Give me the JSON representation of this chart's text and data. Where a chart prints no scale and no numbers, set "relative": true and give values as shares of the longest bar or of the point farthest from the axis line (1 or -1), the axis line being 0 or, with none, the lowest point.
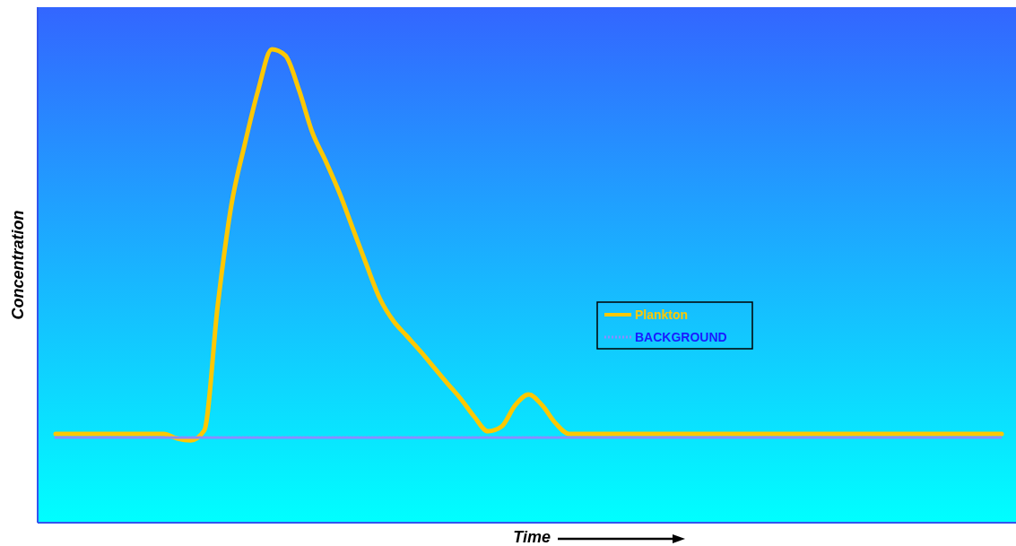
{
  "chart_data": {
    "type": "line",
    "relative": true,
    "xlabel": "Time",
    "ylabel": "Concentration",
    "legend": "right",
    "line_style": "solid",
    "categories": [
      null,
      null,
      null,
      null,
      null,
      null,
      null,
      null,
      null,
      null,
      null,
      null,
      null,
      null,
      null,
      null,
      null,
      null,
      null,
      null,
      null,
      null,
      null,
      null,
      null,
      null,
      null,
      null,
      null,
      null,
      null,
      null,
      null,
      null,
      null,
      null,
      null,
      null,
      null,
      null,
      null,
      null,
      null,
      null,
      null,
      null,
      null,
      null,
      null,
      null,
      null,
      null,
      null,
      null,
      null,
      null,
      null,
      null,
      null,
      null,
      null,
      null,
      null,
      null,
      null,
      null,
      null,
      null,
      null,
      null,
      null
    ],
    "series": [
      {
        "name": "Plankton",
        "color": "#ffc800",
        "values": [
          0.1875,
          0.1875,
          0.1875,
          0.1875,
          0.1875,
          0.1875,
          0.1875,
          0.1875,
          0.1875,
          0.178,
          0.174,
          0.195,
          0.46,
          0.67,
          0.8,
          0.915,
          1,
          0.987,
          0.915,
          0.824,
          0.763,
          0.697,
          0.621,
          0.545,
          0.473,
          0.426,
          0.394,
          0.362,
          0.328,
          0.294,
          0.261,
          0.223,
          0.193,
          0.203,
          0.248,
          0.271,
          0.248,
          0.21,
          0.1875,
          0.1875,
          0.1875,
          0.1875,
          0.1875,
          0.1875,
          0.1875,
          0.1875,
          0.1875,
          0.1875,
          0.1875,
          0.1875,
          0.1875,
          0.1875,
          0.1875,
          0.1875,
          0.1875,
          0.1875,
          0.1875,
          0.1875,
          0.1875,
          0.1875,
          0.1875,
          0.1875,
          0.1875,
          0.1875,
          0.1875,
          0.1875,
          0.1875,
          0.1875,
          0.1875,
          0.1875,
          0.1875
        ]
      },
      {
        "name": "BACKGROUND",
        "color": "#8c8cff",
        "line_style": "dotted",
        "values": [
          0.18,
          0.18,
          0.18,
          0.18,
          0.18,
          0.18,
          0.18,
          0.18,
          0.18,
          0.18,
          0.18,
          0.18,
          0.18,
          0.18,
          0.18,
          0.18,
          0.18,
          0.18,
          0.18,
          0.18,
          0.18,
          0.18,
          0.18,
          0.18,
          0.18,
          0.18,
          0.18,
          0.18,
          0.18,
          0.18,
          0.18,
          0.18,
          0.18,
          0.18,
          0.18,
          0.18,
          0.18,
          0.18,
          0.18,
          0.18,
          0.18,
          0.18,
          0.18,
          0.18,
          0.18,
          0.18,
          0.18,
          0.18,
          0.18,
          0.18,
          0.18,
          0.18,
          0.18,
          0.18,
          0.18,
          0.18,
          0.18,
          0.18,
          0.18,
          0.18,
          0.18,
          0.18,
          0.18,
          0.18,
          0.18,
          0.18,
          0.18,
          0.18,
          0.18,
          0.18,
          0.18
        ]
      }
    ]
  }
}
